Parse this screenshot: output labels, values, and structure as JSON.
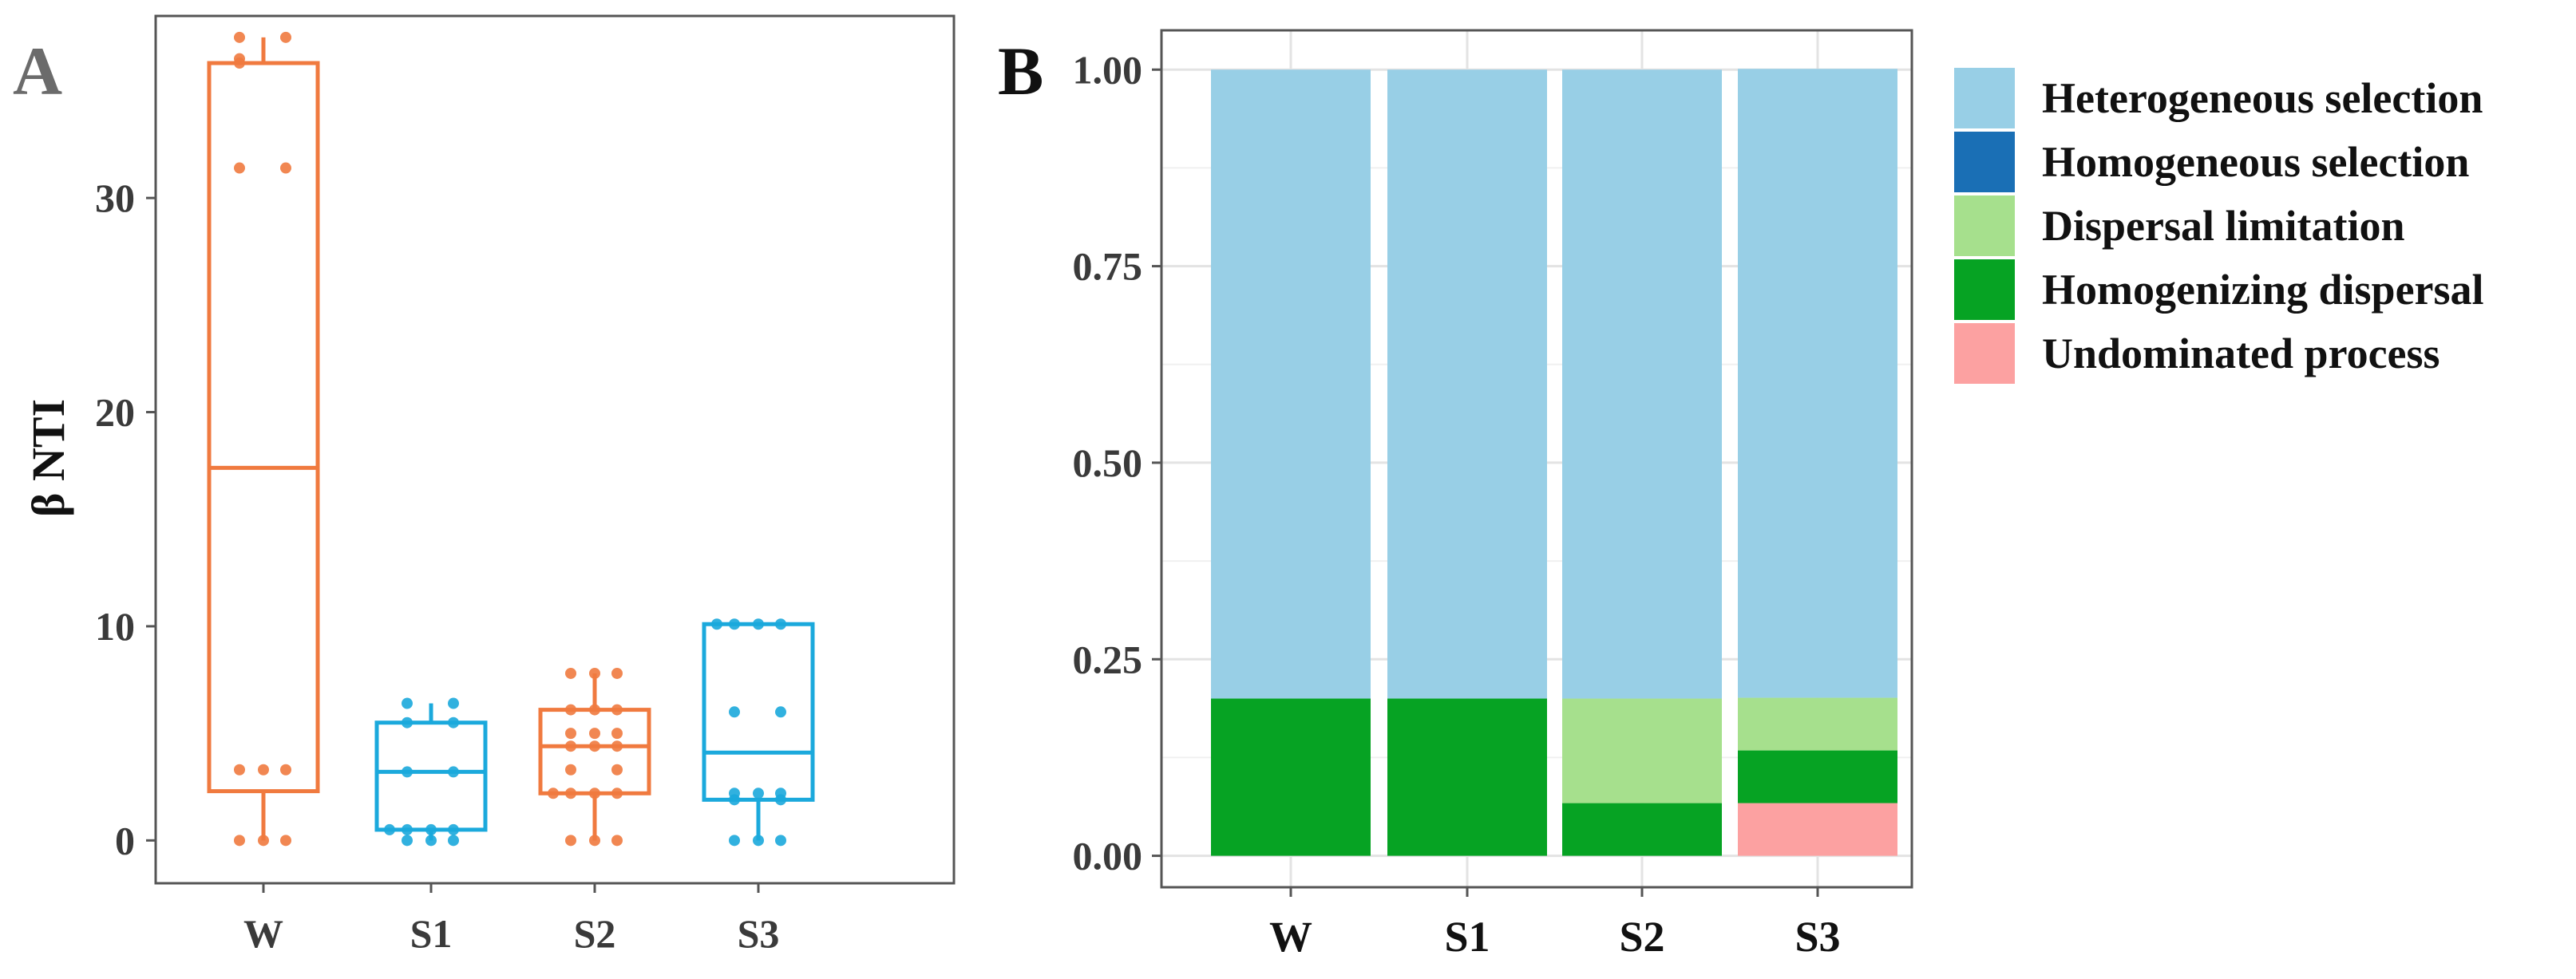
{
  "panel_a": {
    "letter": "A",
    "colors": {
      "orange": "#f07a3f",
      "blue": "#1ba9dc"
    }
  },
  "panel_b": {
    "letter": "B",
    "colors": {
      "Heterogeneous selection": "#98cfe6",
      "Homogeneous selection": "#1a6fb5",
      "Dispersal limitation": "#a6e08d",
      "Homogenizing dispersal": "#06a323",
      "Undominated process": "#fca1a1"
    }
  },
  "chart_data": [
    {
      "type": "box",
      "title": "",
      "xlabel": "",
      "ylabel": "β NTI",
      "ylim": [
        -2,
        38.5
      ],
      "yticks": [
        0,
        10,
        20,
        30
      ],
      "grid": false,
      "categories": [
        "W",
        "S1",
        "S2",
        "S3"
      ],
      "series": [
        {
          "category": "W",
          "color": "orange",
          "min": 0,
          "q1": 2.3,
          "median": 17.4,
          "q3": 36.3,
          "max": 37.5,
          "points": [
            0,
            0,
            0,
            3.3,
            3.3,
            3.3,
            31.4,
            31.4,
            36.3,
            36.5,
            37.5,
            37.5
          ]
        },
        {
          "category": "S1",
          "color": "blue",
          "min": 0,
          "q1": 0.5,
          "median": 3.2,
          "q3": 5.5,
          "max": 6.4,
          "points": [
            0,
            0,
            0,
            0.5,
            0.5,
            0.5,
            0.5,
            3.2,
            3.2,
            5.5,
            5.5,
            6.4,
            6.4
          ]
        },
        {
          "category": "S2",
          "color": "orange",
          "min": 0,
          "q1": 2.2,
          "median": 4.4,
          "q3": 6.1,
          "max": 7.8,
          "points": [
            0,
            0,
            0,
            2.2,
            2.2,
            2.2,
            2.2,
            3.3,
            3.3,
            4.4,
            4.4,
            4.4,
            5.0,
            5.0,
            5.0,
            6.1,
            6.1,
            6.1,
            7.8,
            7.8,
            7.8
          ]
        },
        {
          "category": "S3",
          "color": "blue",
          "min": 0,
          "q1": 1.9,
          "median": 4.1,
          "q3": 10.1,
          "max": 10.1,
          "points": [
            0,
            0,
            0,
            1.9,
            1.9,
            2.2,
            2.2,
            2.2,
            6.0,
            6.0,
            10.1,
            10.1,
            10.1,
            10.1
          ]
        }
      ]
    },
    {
      "type": "bar",
      "stacked": true,
      "title": "",
      "xlabel": "",
      "ylabel": "",
      "ylim": [
        -0.04,
        1.05
      ],
      "yticks": [
        "0.00",
        "0.25",
        "0.50",
        "0.75",
        "1.00"
      ],
      "grid": true,
      "legend_position": "right",
      "categories": [
        "W",
        "S1",
        "S2",
        "S3"
      ],
      "series": [
        {
          "name": "Heterogeneous selection",
          "values": [
            0.8,
            0.8,
            0.8,
            0.8
          ]
        },
        {
          "name": "Homogeneous selection",
          "values": [
            0,
            0,
            0,
            0
          ]
        },
        {
          "name": "Dispersal limitation",
          "values": [
            0,
            0,
            0.133,
            0.067
          ]
        },
        {
          "name": "Homogenizing dispersal",
          "values": [
            0.2,
            0.2,
            0.067,
            0.067
          ]
        },
        {
          "name": "Undominated process",
          "values": [
            0,
            0,
            0,
            0.067
          ]
        }
      ]
    }
  ]
}
